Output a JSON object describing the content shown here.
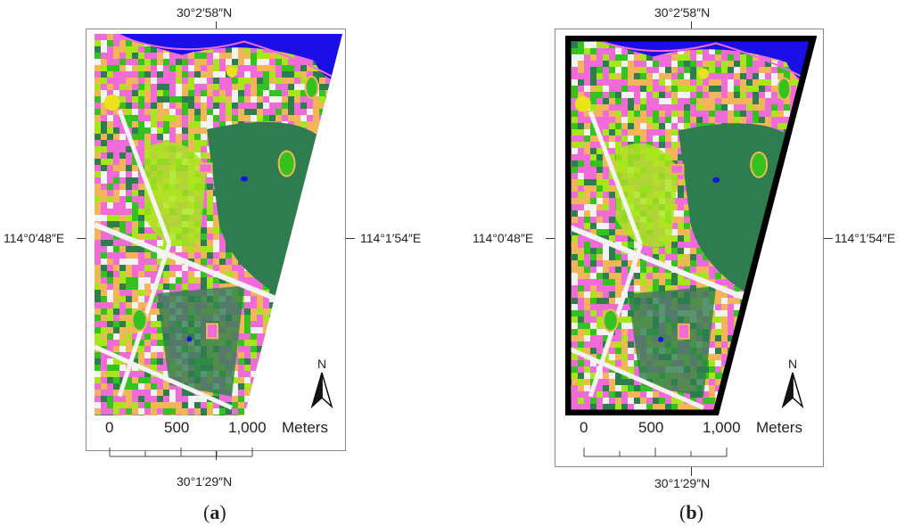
{
  "panels": [
    {
      "id": "a",
      "caption_letter": "a",
      "coord_top": "30°2′58″N",
      "coord_bottom": "30°1′29″N",
      "coord_left": "114°0′48″E",
      "coord_right": "114°1′54″E",
      "scale": {
        "labels": [
          "0",
          "500",
          "1,000"
        ],
        "unit": "Meters"
      },
      "north_label": "N",
      "black_border": false
    },
    {
      "id": "b",
      "caption_letter": "b",
      "coord_top": "30°2′58″N",
      "coord_bottom": "30°1′29″N",
      "coord_left": "114°0′48″E",
      "coord_right": "114°1′54″E",
      "scale": {
        "labels": [
          "0",
          "500",
          "1,000"
        ],
        "unit": "Meters"
      },
      "north_label": "N",
      "black_border": true
    }
  ],
  "colors": {
    "forest": "#2e7d4f",
    "vegetation": "#33c21e",
    "grass": "#a8e61c",
    "building": "#f06ad8",
    "bare": "#f2b55a",
    "water": "#1a0fe6",
    "road": "#f3f3f3",
    "yellow": "#ece21a"
  }
}
